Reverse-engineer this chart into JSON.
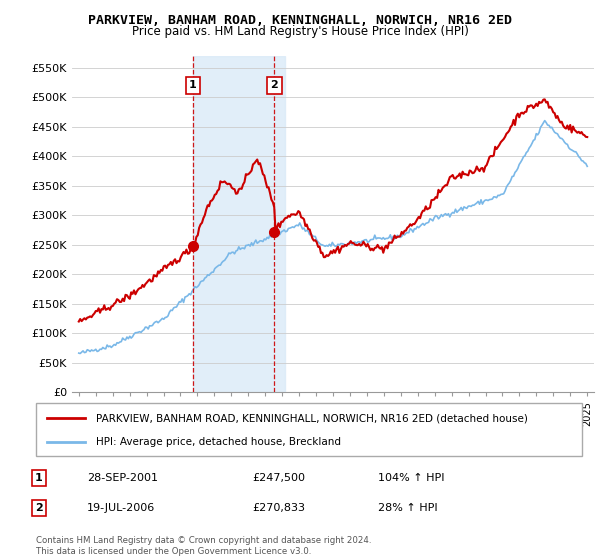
{
  "title": "PARKVIEW, BANHAM ROAD, KENNINGHALL, NORWICH, NR16 2ED",
  "subtitle": "Price paid vs. HM Land Registry's House Price Index (HPI)",
  "legend_line1": "PARKVIEW, BANHAM ROAD, KENNINGHALL, NORWICH, NR16 2ED (detached house)",
  "legend_line2": "HPI: Average price, detached house, Breckland",
  "footer": "Contains HM Land Registry data © Crown copyright and database right 2024.\nThis data is licensed under the Open Government Licence v3.0.",
  "annotation1_label": "1",
  "annotation1_date": "28-SEP-2001",
  "annotation1_price": "£247,500",
  "annotation1_hpi": "104% ↑ HPI",
  "annotation2_label": "2",
  "annotation2_date": "19-JUL-2006",
  "annotation2_price": "£270,833",
  "annotation2_hpi": "28% ↑ HPI",
  "hpi_color": "#7ab8e8",
  "price_color": "#cc0000",
  "annotation_color": "#cc0000",
  "shade_color": "#daeaf8",
  "grid_color": "#cccccc",
  "ylim": [
    0,
    570000
  ],
  "yticks": [
    0,
    50000,
    100000,
    150000,
    200000,
    250000,
    300000,
    350000,
    400000,
    450000,
    500000,
    550000
  ],
  "ytick_labels": [
    "£0",
    "£50K",
    "£100K",
    "£150K",
    "£200K",
    "£250K",
    "£300K",
    "£350K",
    "£400K",
    "£450K",
    "£500K",
    "£550K"
  ],
  "sale1_x": 2001.74,
  "sale1_y": 247500,
  "sale2_x": 2006.54,
  "sale2_y": 270833,
  "xlim_left": 1994.6,
  "xlim_right": 2025.4
}
